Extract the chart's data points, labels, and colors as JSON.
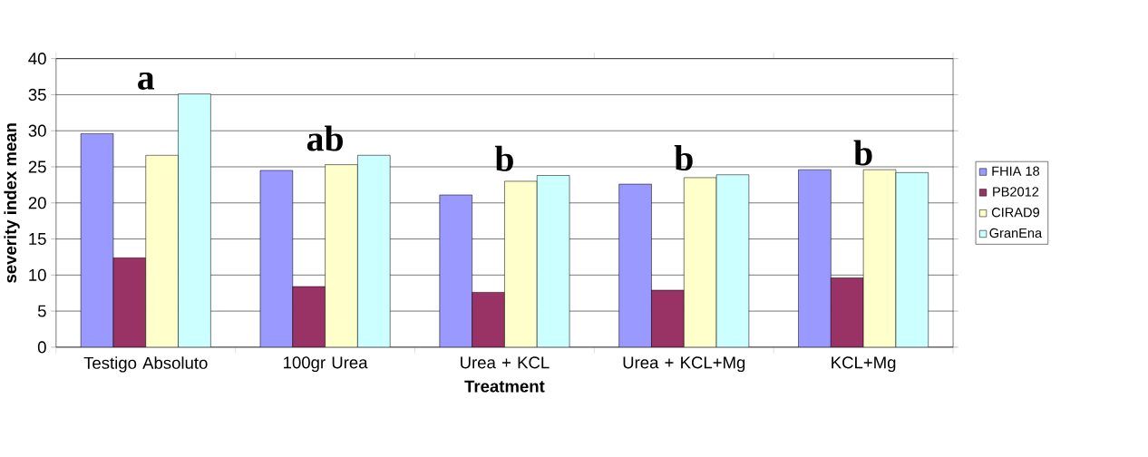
{
  "chart_data": {
    "type": "bar",
    "xlabel": "Treatment",
    "ylabel": "severity index mean",
    "categories": [
      "Testigo Absoluto",
      "100gr Urea",
      "Urea + KCL",
      "Urea + KCL+Mg",
      "KCL+Mg"
    ],
    "series": [
      {
        "name": "FHIA 18",
        "color": "#9999ff",
        "values": [
          29.6,
          24.5,
          21.1,
          22.6,
          24.6
        ]
      },
      {
        "name": "PB2012",
        "color": "#993366",
        "values": [
          12.4,
          8.4,
          7.6,
          7.9,
          9.6
        ]
      },
      {
        "name": "CIRAD9",
        "color": "#ffffcc",
        "values": [
          26.6,
          25.3,
          23.0,
          23.5,
          24.6
        ]
      },
      {
        "name": "GranEna",
        "color": "#ccffff",
        "values": [
          35.1,
          26.6,
          23.8,
          23.9,
          24.2
        ]
      }
    ],
    "ylim": [
      0,
      40
    ],
    "yticks": [
      0,
      5,
      10,
      15,
      20,
      25,
      30,
      35,
      40
    ],
    "grid": "y",
    "legend": "right",
    "annotations": [
      "a",
      "ab",
      "b",
      "b",
      "b"
    ]
  }
}
